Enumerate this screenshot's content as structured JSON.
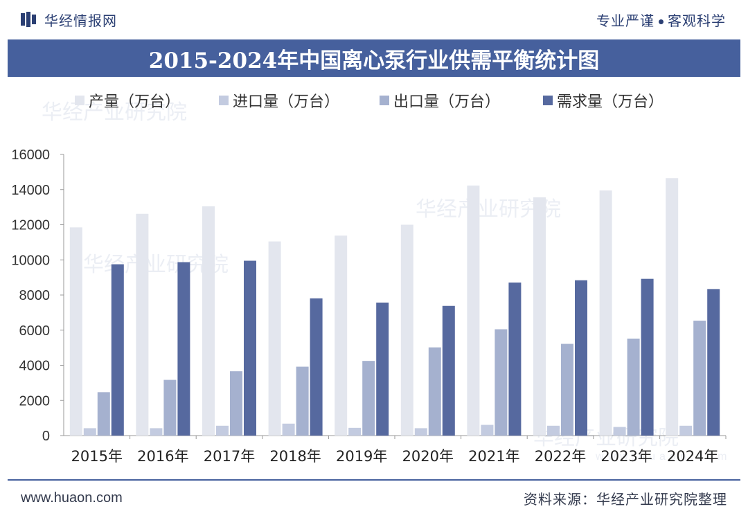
{
  "header": {
    "brand_name": "华经情报网",
    "slogan_left": "专业严谨",
    "slogan_right": "客观科学"
  },
  "title": "2015-2024年中国离心泵行业供需平衡统计图",
  "watermarks": [
    "华经产业研究院",
    "www.huaon.com"
  ],
  "footer": {
    "website": "www.huaon.com",
    "source": "资料来源：华经产业研究院整理"
  },
  "colors": {
    "brand": "#2b3f73",
    "title_bg": "#46609d",
    "series": [
      "#e3e6ee",
      "#c3cbe0",
      "#a5b1cf",
      "#56699f"
    ]
  },
  "chart_data": {
    "type": "bar",
    "title": "2015-2024年中国离心泵行业供需平衡统计图",
    "categories": [
      "2015年",
      "2016年",
      "2017年",
      "2018年",
      "2019年",
      "2020年",
      "2021年",
      "2022年",
      "2023年",
      "2024年"
    ],
    "series": [
      {
        "name": "产量（万台）",
        "values": [
          11850,
          12620,
          13050,
          11050,
          11380,
          12000,
          14230,
          13560,
          13950,
          14650
        ]
      },
      {
        "name": "进口量（万台）",
        "values": [
          420,
          420,
          560,
          680,
          440,
          420,
          610,
          560,
          490,
          560
        ]
      },
      {
        "name": "出口量（万台）",
        "values": [
          2470,
          3170,
          3660,
          3920,
          4250,
          5020,
          6050,
          5220,
          5520,
          6540
        ]
      },
      {
        "name": "需求量（万台）",
        "values": [
          9750,
          9870,
          9950,
          7810,
          7570,
          7380,
          8710,
          8840,
          8920,
          8340
        ]
      }
    ],
    "xlabel": "",
    "ylabel": "",
    "ylim": [
      0,
      16000
    ],
    "yticks": [
      "0",
      "2000",
      "4000",
      "6000",
      "8000",
      "10000",
      "12000",
      "14000",
      "16000"
    ],
    "legend": "top",
    "grid": false
  }
}
